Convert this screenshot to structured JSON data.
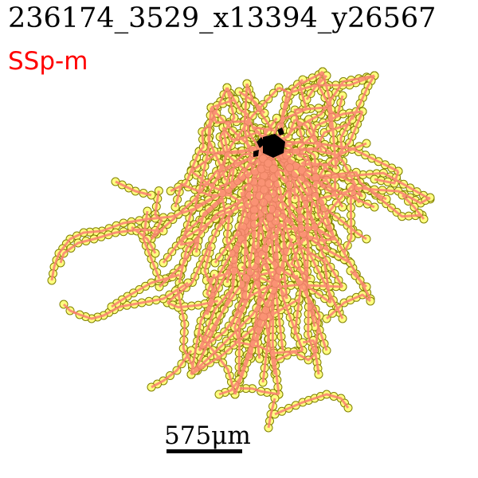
{
  "title": "236174_3529_x13394_y26567",
  "region": {
    "label": "SSp-m",
    "color": "#ff0000"
  },
  "scale_bar": {
    "label": "575μm"
  },
  "colors": {
    "skeleton": "#fa8072",
    "node_fill": "#ffff80",
    "node_edge": "#808000",
    "soma": "#000000"
  }
}
